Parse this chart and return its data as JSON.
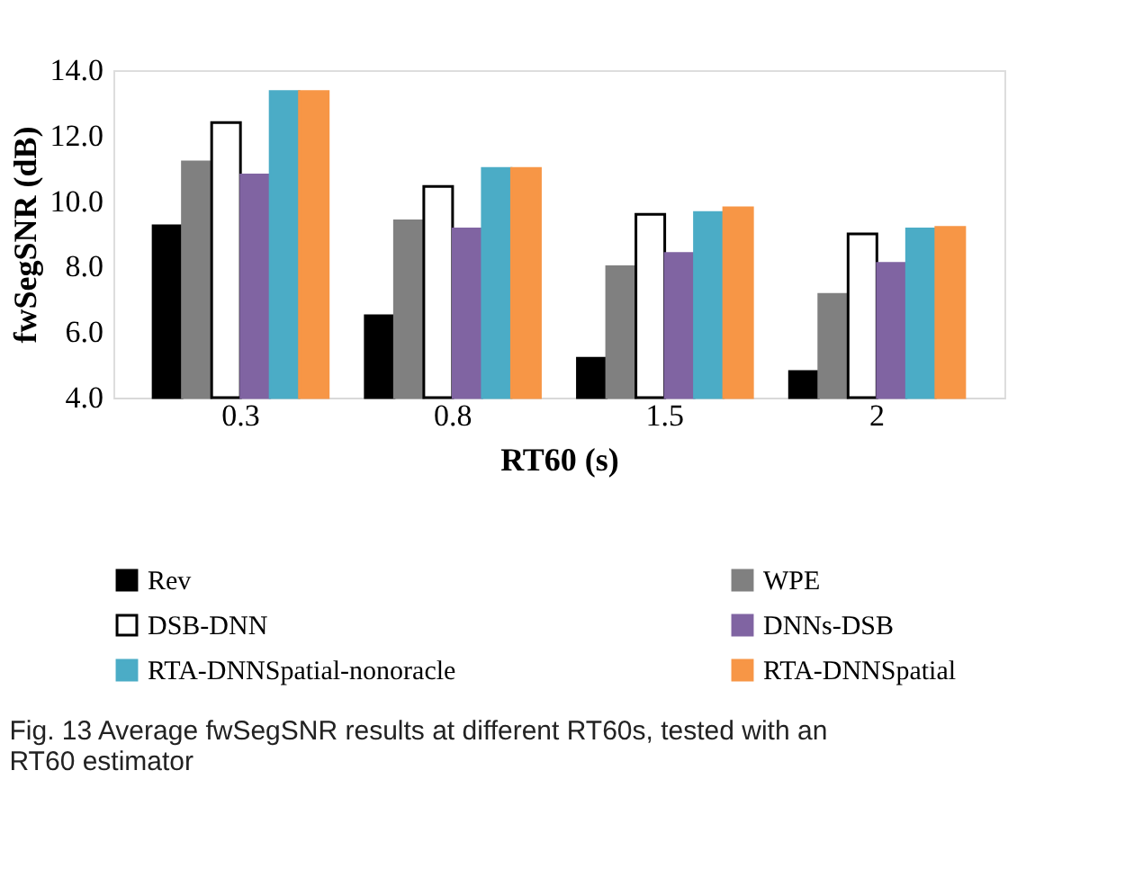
{
  "chart_data": {
    "type": "bar",
    "xlabel": "RT60 (s)",
    "ylabel": "fwSegSNR (dB)",
    "categories": [
      "0.3",
      "0.8",
      "1.5",
      "2"
    ],
    "series": [
      {
        "name": "Rev",
        "color": "#000000",
        "values": [
          9.25,
          6.5,
          5.2,
          4.8
        ]
      },
      {
        "name": "WPE",
        "color": "#808080",
        "values": [
          11.2,
          9.4,
          8.0,
          7.15
        ]
      },
      {
        "name": "DSB-DNN",
        "color": "#ffffff",
        "values": [
          12.4,
          10.45,
          9.6,
          9.0
        ]
      },
      {
        "name": "DNNs-DSB",
        "color": "#8064a2",
        "values": [
          10.8,
          9.15,
          8.4,
          8.1
        ]
      },
      {
        "name": "RTA-DNNSpatial-nonoracle",
        "color": "#4bacc6",
        "values": [
          13.35,
          11.0,
          9.65,
          9.15
        ]
      },
      {
        "name": "RTA-DNNSpatial",
        "color": "#f79646",
        "values": [
          13.35,
          11.0,
          9.8,
          9.2
        ]
      }
    ],
    "ylim": [
      4.0,
      14.0
    ],
    "yticks": [
      {
        "value": 4,
        "label": "4.0"
      },
      {
        "value": 6,
        "label": "6.0"
      },
      {
        "value": 8,
        "label": "8.0"
      },
      {
        "value": 10,
        "label": "10.0"
      },
      {
        "value": 12,
        "label": "12.0"
      },
      {
        "value": 14,
        "label": "14.0"
      }
    ],
    "grid": false,
    "legend": "bottom",
    "annotations": [
      "Fig. 13 Average fwSegSNR results at different RT60s, tested with an RT60 estimator"
    ]
  }
}
